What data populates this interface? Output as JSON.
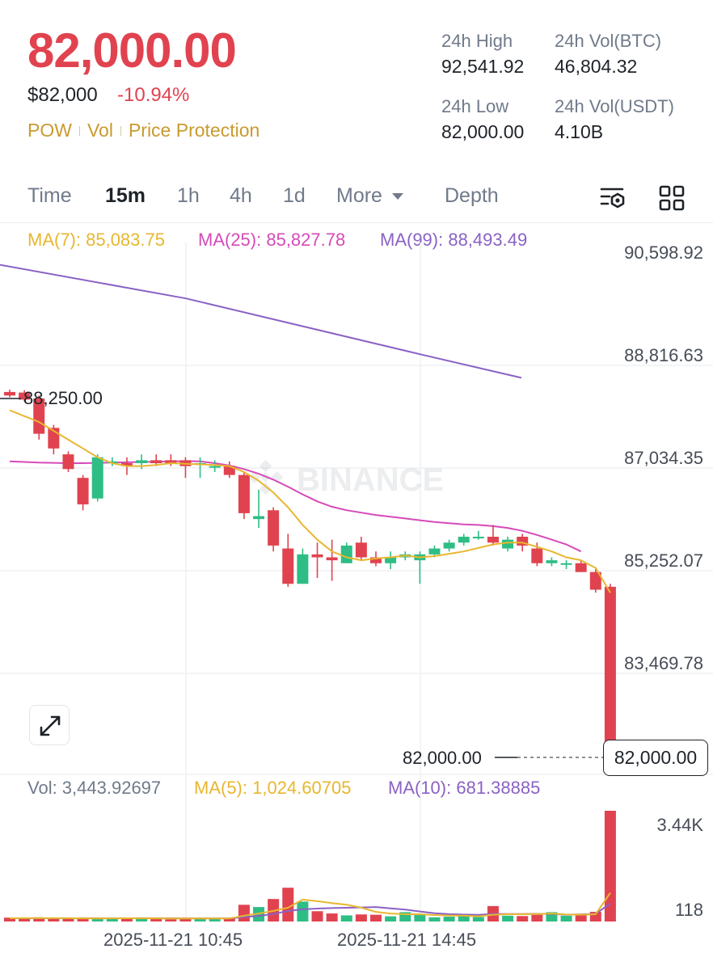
{
  "header": {
    "price": "82,000.00",
    "fiat": "$82,000",
    "change": "-10.94%",
    "tags": [
      "POW",
      "Vol",
      "Price Protection"
    ]
  },
  "stats": {
    "high_label": "24h High",
    "high_value": "92,541.92",
    "vol_btc_label": "24h Vol(BTC)",
    "vol_btc_value": "46,804.32",
    "low_label": "24h Low",
    "low_value": "82,000.00",
    "vol_usdt_label": "24h Vol(USDT)",
    "vol_usdt_value": "4.10B"
  },
  "tabs": {
    "time": "Time",
    "m15": "15m",
    "h1": "1h",
    "h4": "4h",
    "d1": "1d",
    "more": "More",
    "depth": "Depth",
    "active": "15m",
    "icons": [
      "chart-settings-icon",
      "grid-icon"
    ]
  },
  "ma": {
    "ma7": "MA(7): 85,083.75",
    "ma25": "MA(25): 85,827.78",
    "ma99": "MA(99): 88,493.49"
  },
  "axis": {
    "labels": [
      "90,598.92",
      "88,816.63",
      "87,034.35",
      "85,252.07",
      "83,469.78"
    ],
    "vol_labels": [
      "3.44K",
      "118"
    ]
  },
  "markers": {
    "high_label": "88,250.00",
    "low_label": "82,000.00",
    "last_price": "82,000.00"
  },
  "watermark": "BINANCE",
  "volume": {
    "vol": "Vol: 3,443.92697",
    "ma5": "MA(5): 1,024.60705",
    "ma10": "MA(10): 681.38885"
  },
  "dates": [
    "2025-11-21 10:45",
    "2025-11-21 14:45"
  ],
  "colors": {
    "up": "#2ebd85",
    "down": "#e0434f",
    "ma7": "#e8b72f",
    "ma25": "#d64ab8",
    "ma99": "#8a62c4",
    "accent": "#c99a2e"
  },
  "chart_data": {
    "type": "candlestick",
    "interval": "15m",
    "ylim": [
      82000,
      90598.92
    ],
    "candles": [
      [
        88210,
        88250,
        88120,
        88150
      ],
      [
        88200,
        88240,
        88050,
        88080
      ],
      [
        88100,
        88150,
        87400,
        87500
      ],
      [
        87600,
        87650,
        87150,
        87250
      ],
      [
        87150,
        87200,
        86850,
        86900
      ],
      [
        86750,
        86800,
        86200,
        86300
      ],
      [
        86400,
        87150,
        86350,
        87100
      ],
      [
        87000,
        87100,
        86950,
        87030
      ],
      [
        87000,
        87100,
        86800,
        86950
      ],
      [
        87000,
        87150,
        86900,
        87050
      ],
      [
        87050,
        87150,
        86950,
        87000
      ],
      [
        87050,
        87150,
        86950,
        87000
      ],
      [
        87050,
        87100,
        86750,
        86950
      ],
      [
        86980,
        87100,
        86750,
        87000
      ],
      [
        86950,
        87050,
        86850,
        86950
      ],
      [
        86950,
        87030,
        86750,
        86800
      ],
      [
        86800,
        86850,
        86050,
        86150
      ],
      [
        86050,
        86550,
        85900,
        86100
      ],
      [
        86200,
        86250,
        85500,
        85600
      ],
      [
        85550,
        85800,
        84900,
        84950
      ],
      [
        84950,
        85550,
        84950,
        85450
      ],
      [
        85450,
        85650,
        85050,
        85400
      ],
      [
        85400,
        85700,
        85000,
        85350
      ],
      [
        85300,
        85650,
        85300,
        85600
      ],
      [
        85650,
        85750,
        85350,
        85400
      ],
      [
        85400,
        85500,
        85250,
        85300
      ],
      [
        85300,
        85500,
        85200,
        85400
      ],
      [
        85400,
        85500,
        85350,
        85450
      ],
      [
        85350,
        85500,
        84950,
        85450
      ],
      [
        85450,
        85600,
        85400,
        85550
      ],
      [
        85550,
        85700,
        85500,
        85650
      ],
      [
        85650,
        85800,
        85600,
        85750
      ],
      [
        85750,
        85850,
        85700,
        85750
      ],
      [
        85750,
        85950,
        85600,
        85650
      ],
      [
        85550,
        85750,
        85500,
        85700
      ],
      [
        85750,
        85800,
        85500,
        85600
      ],
      [
        85550,
        85650,
        85250,
        85300
      ],
      [
        85300,
        85400,
        85250,
        85350
      ],
      [
        85300,
        85350,
        85200,
        85300
      ],
      [
        85300,
        85350,
        85150,
        85150
      ],
      [
        85150,
        85200,
        84800,
        84850
      ],
      [
        84900,
        84950,
        82000,
        82000
      ]
    ],
    "ma7": [
      87900,
      87800,
      87700,
      87550,
      87400,
      87250,
      87100,
      87000,
      86950,
      86950,
      86970,
      87000,
      86990,
      86980,
      86970,
      86950,
      86850,
      86700,
      86500,
      86250,
      85950,
      85700,
      85500,
      85400,
      85350,
      85380,
      85400,
      85430,
      85400,
      85420,
      85460,
      85500,
      85560,
      85620,
      85650,
      85650,
      85580,
      85500,
      85400,
      85350,
      85220,
      84800
    ],
    "ma25": [
      87030,
      87020,
      87010,
      87005,
      87000,
      87000,
      87005,
      87010,
      87015,
      87020,
      87025,
      87030,
      87035,
      87030,
      87000,
      86960,
      86900,
      86820,
      86720,
      86600,
      86470,
      86350,
      86260,
      86200,
      86160,
      86120,
      86090,
      86060,
      86030,
      86000,
      85980,
      85960,
      85950,
      85930,
      85900,
      85850,
      85780,
      85700,
      85620,
      85500
    ],
    "ma99": [
      [
        -20,
        90420
      ],
      [
        230,
        89800
      ],
      [
        520,
        88850
      ],
      [
        645,
        88450
      ]
    ],
    "volume": {
      "max": 3443.92697,
      "values": [
        120,
        80,
        130,
        95,
        110,
        90,
        95,
        100,
        85,
        105,
        110,
        70,
        95,
        90,
        95,
        100,
        520,
        450,
        700,
        1050,
        620,
        320,
        250,
        190,
        220,
        210,
        160,
        290,
        200,
        130,
        150,
        170,
        140,
        480,
        180,
        170,
        210,
        290,
        180,
        220,
        300,
        3443.92697
      ],
      "ma5": [
        100,
        102,
        103,
        102,
        103,
        99,
        95,
        98,
        100,
        98,
        98,
        92,
        92,
        93,
        93,
        92,
        180,
        250,
        330,
        430,
        680,
        630,
        570,
        520,
        430,
        300,
        250,
        225,
        225,
        200,
        185,
        180,
        160,
        210,
        225,
        230,
        235,
        250,
        215,
        210,
        225,
        890
      ],
      "ma10": [
        100,
        100,
        101,
        101,
        101,
        101,
        101,
        101,
        101,
        102,
        101,
        100,
        98,
        98,
        98,
        98,
        139,
        174,
        234,
        328,
        379,
        402,
        418,
        427,
        438,
        449,
        408,
        372,
        312,
        260,
        229,
        217,
        206,
        236,
        232,
        233,
        240,
        237,
        213,
        221,
        236,
        560
      ]
    }
  }
}
